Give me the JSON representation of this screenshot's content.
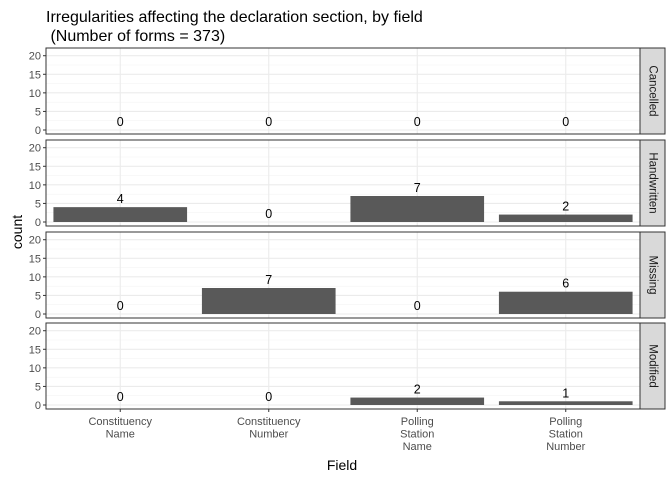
{
  "chart_data": {
    "type": "bar",
    "title_line1": "Irregularities affecting the declaration section, by field",
    "title_line2": " (Number of forms = 373)",
    "xlabel": "Field",
    "ylabel": "count",
    "ylim": [
      0,
      21
    ],
    "yticks": [
      0,
      5,
      10,
      15,
      20
    ],
    "categories": [
      [
        "Constituency",
        "Name"
      ],
      [
        "Constituency",
        "Number"
      ],
      [
        "Polling",
        "Station",
        "Name"
      ],
      [
        "Polling",
        "Station",
        "Number"
      ]
    ],
    "facets": [
      {
        "name": "Cancelled",
        "values": [
          0,
          0,
          0,
          0
        ]
      },
      {
        "name": "Handwritten",
        "values": [
          4,
          0,
          7,
          2
        ]
      },
      {
        "name": "Missing",
        "values": [
          0,
          7,
          0,
          6
        ]
      },
      {
        "name": "Modified",
        "values": [
          0,
          0,
          2,
          1
        ]
      }
    ],
    "colors": {
      "bar": "#595959",
      "strip_bg": "#d9d9d9",
      "panel_border": "#333333",
      "grid": "#ebebeb"
    },
    "grid": true,
    "facet_strip_position": "right"
  }
}
